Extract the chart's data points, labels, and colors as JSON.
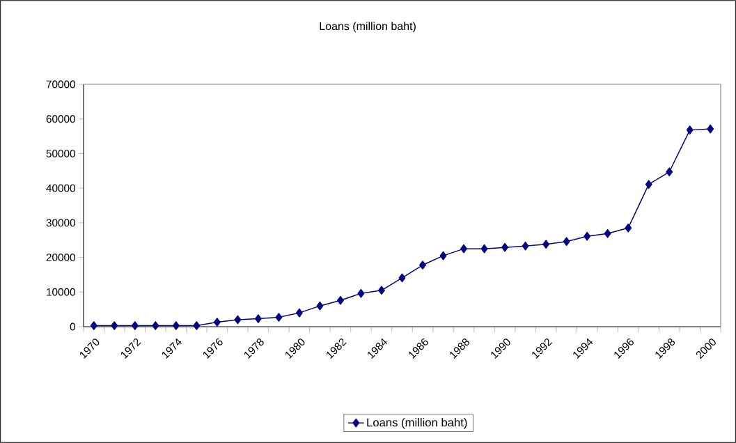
{
  "chart_data": {
    "type": "line",
    "title": "Loans (million baht)",
    "categories": [
      "1970",
      null,
      "1972",
      null,
      "1974",
      null,
      "1976",
      null,
      "1978",
      null,
      "1980",
      null,
      "1982",
      null,
      "1984",
      null,
      "1986",
      null,
      "1988",
      null,
      "1990",
      null,
      "1992",
      null,
      "1994",
      null,
      "1996",
      null,
      "1998",
      null,
      "2000"
    ],
    "series": [
      {
        "name": "Loans (million baht)",
        "color": "#000080",
        "values": [
          300,
          300,
          300,
          300,
          300,
          300,
          1300,
          2000,
          2300,
          2700,
          4000,
          6000,
          7600,
          9600,
          10500,
          14100,
          17800,
          20500,
          22500,
          22500,
          22900,
          23300,
          23800,
          24600,
          26100,
          26900,
          28500,
          41100,
          44700,
          56800,
          57100
        ]
      }
    ],
    "ylim": [
      0,
      70000
    ],
    "yticks": [
      0,
      10000,
      20000,
      30000,
      40000,
      50000,
      60000,
      70000
    ],
    "marker": "diamond",
    "line_style": "solid",
    "legend": "bottom",
    "grid": false
  }
}
